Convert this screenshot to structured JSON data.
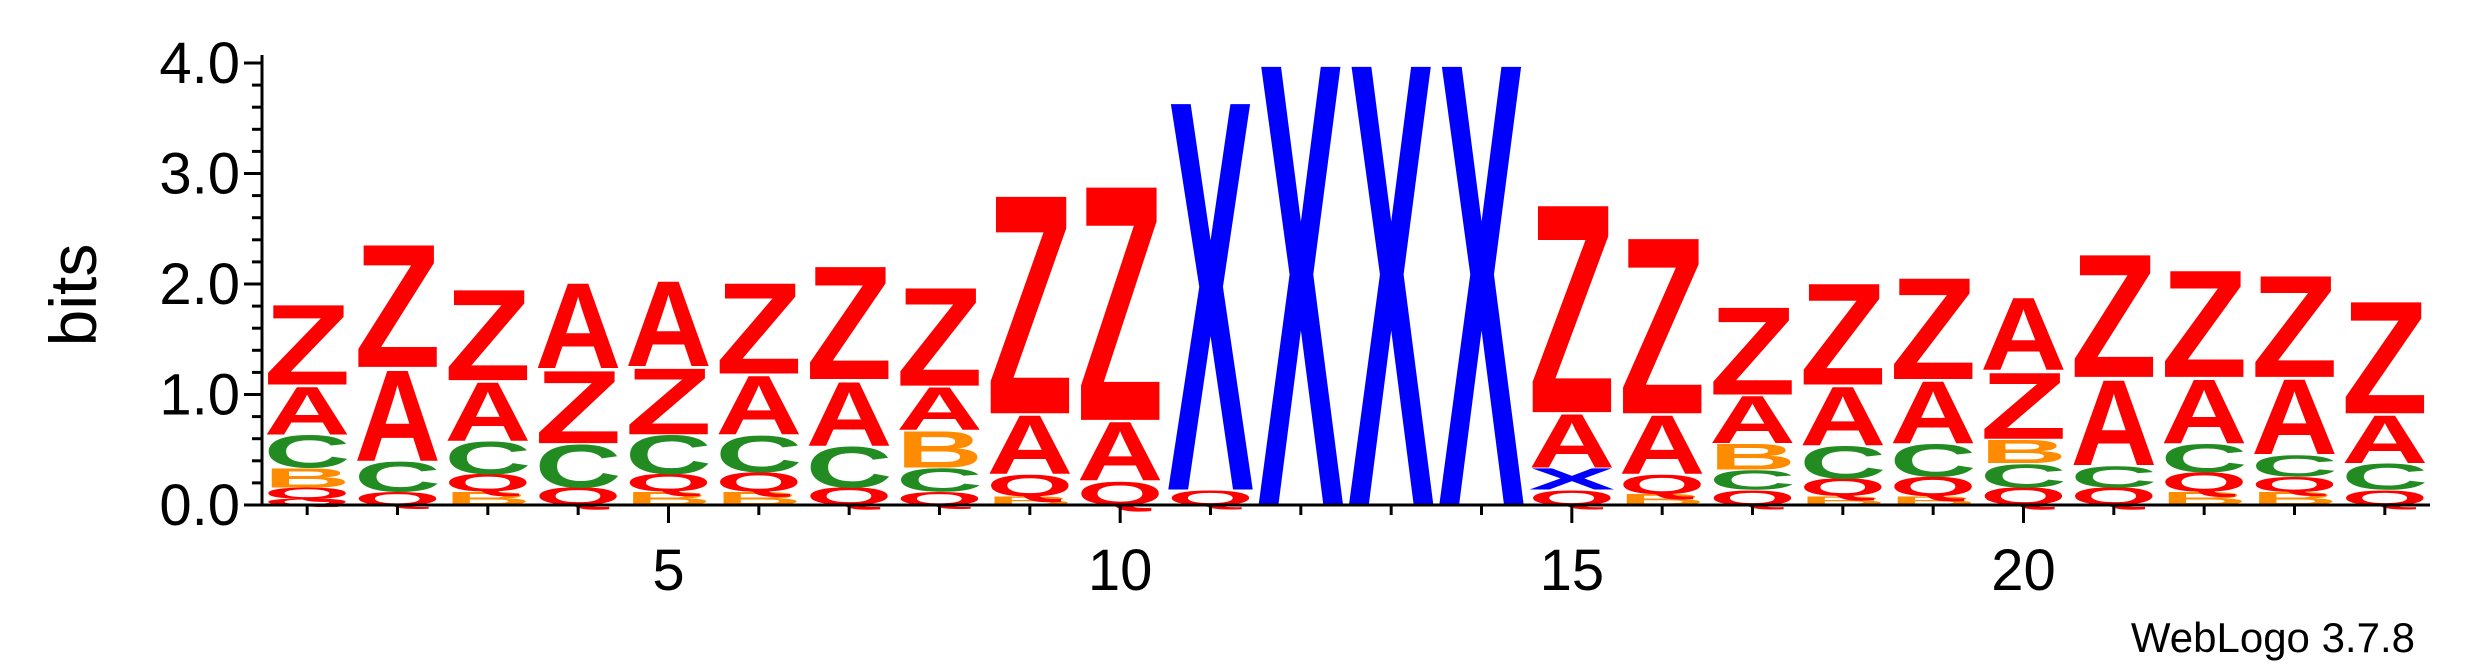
{
  "chart_data": {
    "type": "sequence-logo",
    "ylabel": "bits",
    "ylim": [
      0,
      4.0
    ],
    "yticks": [
      "0.0",
      "1.0",
      "2.0",
      "3.0",
      "4.0"
    ],
    "xticks": [
      {
        "pos": 5,
        "label": "5"
      },
      {
        "pos": 10,
        "label": "10"
      },
      {
        "pos": 15,
        "label": "15"
      },
      {
        "pos": 20,
        "label": "20"
      }
    ],
    "xlim": [
      0.5,
      24.5
    ],
    "colors": {
      "Z": "#ff0000",
      "A": "#ff0000",
      "Q": "#ff0000",
      "C": "#228b22",
      "B": "#ff8c00",
      "X": "#0000ff"
    },
    "columns": [
      {
        "pos": 1,
        "stack": [
          [
            "Q",
            0.06
          ],
          [
            "Q",
            0.1
          ],
          [
            "B",
            0.18
          ],
          [
            "C",
            0.3
          ],
          [
            "A",
            0.45
          ],
          [
            "Z",
            0.75
          ]
        ]
      },
      {
        "pos": 2,
        "stack": [
          [
            "Q",
            0.12
          ],
          [
            "C",
            0.28
          ],
          [
            "A",
            0.85
          ],
          [
            "Z",
            1.15
          ]
        ]
      },
      {
        "pos": 3,
        "stack": [
          [
            "B",
            0.12
          ],
          [
            "Q",
            0.16
          ],
          [
            "C",
            0.3
          ],
          [
            "A",
            0.55
          ],
          [
            "Z",
            0.85
          ]
        ]
      },
      {
        "pos": 4,
        "stack": [
          [
            "Q",
            0.16
          ],
          [
            "C",
            0.4
          ],
          [
            "Z",
            0.68
          ],
          [
            "A",
            0.8
          ]
        ]
      },
      {
        "pos": 5,
        "stack": [
          [
            "B",
            0.12
          ],
          [
            "Q",
            0.16
          ],
          [
            "C",
            0.36
          ],
          [
            "Z",
            0.62
          ],
          [
            "A",
            0.8
          ]
        ]
      },
      {
        "pos": 6,
        "stack": [
          [
            "B",
            0.12
          ],
          [
            "Q",
            0.18
          ],
          [
            "C",
            0.34
          ],
          [
            "A",
            0.55
          ],
          [
            "Z",
            0.85
          ]
        ]
      },
      {
        "pos": 7,
        "stack": [
          [
            "Q",
            0.16
          ],
          [
            "C",
            0.38
          ],
          [
            "A",
            0.6
          ],
          [
            "Z",
            1.06
          ]
        ]
      },
      {
        "pos": 8,
        "stack": [
          [
            "Q",
            0.12
          ],
          [
            "C",
            0.22
          ],
          [
            "B",
            0.34
          ],
          [
            "A",
            0.4
          ],
          [
            "Z",
            0.92
          ]
        ]
      },
      {
        "pos": 9,
        "stack": [
          [
            "B",
            0.08
          ],
          [
            "Q",
            0.2
          ],
          [
            "A",
            0.55
          ],
          [
            "Z",
            2.05
          ]
        ]
      },
      {
        "pos": 10,
        "stack": [
          [
            "Q",
            0.22
          ],
          [
            "A",
            0.55
          ],
          [
            "Z",
            2.2
          ]
        ]
      },
      {
        "pos": 11,
        "stack": [
          [
            "Q",
            0.14
          ],
          [
            "X",
            3.65
          ]
        ]
      },
      {
        "pos": 12,
        "stack": [
          [
            "X",
            4.15
          ]
        ]
      },
      {
        "pos": 13,
        "stack": [
          [
            "X",
            4.15
          ]
        ]
      },
      {
        "pos": 14,
        "stack": [
          [
            "X",
            4.15
          ]
        ]
      },
      {
        "pos": 15,
        "stack": [
          [
            "Q",
            0.14
          ],
          [
            "X",
            0.2
          ],
          [
            "A",
            0.5
          ],
          [
            "Z",
            1.95
          ]
        ]
      },
      {
        "pos": 16,
        "stack": [
          [
            "B",
            0.1
          ],
          [
            "Q",
            0.18
          ],
          [
            "A",
            0.55
          ],
          [
            "Z",
            1.65
          ]
        ]
      },
      {
        "pos": 17,
        "stack": [
          [
            "Q",
            0.14
          ],
          [
            "C",
            0.18
          ],
          [
            "B",
            0.24
          ],
          [
            "A",
            0.44
          ],
          [
            "Z",
            0.82
          ]
        ]
      },
      {
        "pos": 18,
        "stack": [
          [
            "B",
            0.08
          ],
          [
            "Q",
            0.16
          ],
          [
            "C",
            0.3
          ],
          [
            "A",
            0.55
          ],
          [
            "Z",
            0.95
          ]
        ]
      },
      {
        "pos": 19,
        "stack": [
          [
            "B",
            0.08
          ],
          [
            "Q",
            0.18
          ],
          [
            "C",
            0.3
          ],
          [
            "A",
            0.58
          ],
          [
            "Z",
            0.95
          ]
        ]
      },
      {
        "pos": 20,
        "stack": [
          [
            "Q",
            0.16
          ],
          [
            "C",
            0.22
          ],
          [
            "B",
            0.22
          ],
          [
            "Z",
            0.62
          ],
          [
            "A",
            0.68
          ]
        ]
      },
      {
        "pos": 21,
        "stack": [
          [
            "Q",
            0.16
          ],
          [
            "C",
            0.2
          ],
          [
            "A",
            0.8
          ],
          [
            "Z",
            1.15
          ]
        ]
      },
      {
        "pos": 22,
        "stack": [
          [
            "B",
            0.12
          ],
          [
            "Q",
            0.18
          ],
          [
            "C",
            0.26
          ],
          [
            "A",
            0.6
          ],
          [
            "Z",
            1.0
          ]
        ]
      },
      {
        "pos": 23,
        "stack": [
          [
            "B",
            0.12
          ],
          [
            "Q",
            0.14
          ],
          [
            "C",
            0.2
          ],
          [
            "A",
            0.7
          ],
          [
            "Z",
            0.95
          ]
        ]
      },
      {
        "pos": 24,
        "stack": [
          [
            "Q",
            0.14
          ],
          [
            "C",
            0.24
          ],
          [
            "A",
            0.45
          ],
          [
            "Z",
            1.05
          ]
        ]
      }
    ]
  },
  "footer": {
    "version_label": "WebLogo 3.7.8"
  }
}
